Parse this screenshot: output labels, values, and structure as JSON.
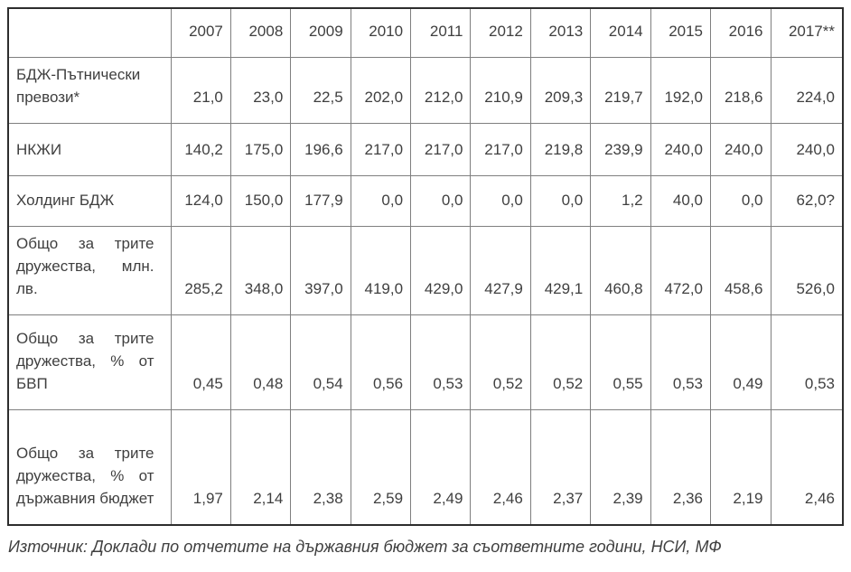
{
  "table": {
    "year_headers": [
      "2007",
      "2008",
      "2009",
      "2010",
      "2011",
      "2012",
      "2013",
      "2014",
      "2015",
      "2016",
      "2017**"
    ],
    "rows": [
      {
        "label": "БДЖ-Пътнически превози*",
        "values": [
          "21,0",
          "23,0",
          "22,5",
          "202,0",
          "212,0",
          "210,9",
          "209,3",
          "219,7",
          "192,0",
          "218,6",
          "224,0"
        ]
      },
      {
        "label": "НКЖИ",
        "values": [
          "140,2",
          "175,0",
          "196,6",
          "217,0",
          "217,0",
          "217,0",
          "219,8",
          "239,9",
          "240,0",
          "240,0",
          "240,0"
        ]
      },
      {
        "label": "Холдинг БДЖ",
        "values": [
          "124,0",
          "150,0",
          "177,9",
          "0,0",
          "0,0",
          "0,0",
          "0,0",
          "1,2",
          "40,0",
          "0,0",
          "62,0?"
        ]
      },
      {
        "label": "Общо за трите дружества, млн. лв.",
        "values": [
          "285,2",
          "348,0",
          "397,0",
          "419,0",
          "429,0",
          "427,9",
          "429,1",
          "460,8",
          "472,0",
          "458,6",
          "526,0"
        ]
      },
      {
        "label": "Общо за трите дружества, % от БВП",
        "values": [
          "0,45",
          "0,48",
          "0,54",
          "0,56",
          "0,53",
          "0,52",
          "0,52",
          "0,55",
          "0,53",
          "0,49",
          "0,53"
        ]
      },
      {
        "label": "Общо за трите дружества, % от държавния бюджет",
        "values": [
          "1,97",
          "2,14",
          "2,38",
          "2,59",
          "2,49",
          "2,46",
          "2,37",
          "2,39",
          "2,36",
          "2,19",
          "2,46"
        ]
      }
    ]
  },
  "footer": {
    "source_note": "Източник: Доклади по отчетите на държавния бюджет за съответните години, НСИ, МФ"
  },
  "colors": {
    "text": "#3f3f3f",
    "inner_border": "#7f7f7f",
    "outer_border": "#2d2d2d",
    "background": "#ffffff"
  }
}
